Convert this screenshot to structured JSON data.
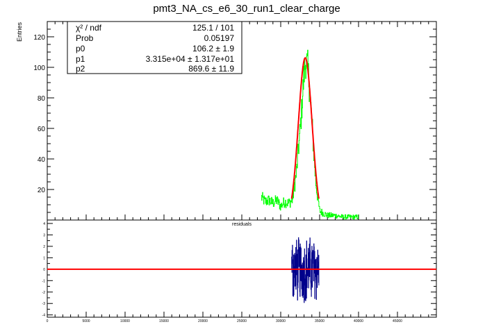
{
  "chart_data": [
    {
      "type": "line",
      "title": "pmt3_NA_cs_e6_30_run1_clear_charge",
      "xlabel": "",
      "ylabel": "Entries",
      "xlim": [
        0,
        50000
      ],
      "ylim": [
        0,
        130
      ],
      "yticks": [
        20,
        40,
        60,
        80,
        100,
        120
      ],
      "grid": false,
      "stats_box": {
        "placement": "top-left",
        "rows": [
          {
            "label": "χ² / ndf",
            "value": "125.1 / 101"
          },
          {
            "label": "Prob",
            "value": "0.05197"
          },
          {
            "label": "p0",
            "value": "106.2 ± 1.9"
          },
          {
            "label": "p1",
            "value": "3.315e+04 ± 1.317e+01"
          },
          {
            "label": "p2",
            "value": "869.6 ± 11.9"
          }
        ]
      },
      "histogram": {
        "color": "#00ff00",
        "range": [
          27500,
          40000
        ],
        "anchors": [
          [
            27500,
            15
          ],
          [
            28000,
            12
          ],
          [
            28500,
            13
          ],
          [
            29000,
            11
          ],
          [
            29500,
            13
          ],
          [
            30000,
            9
          ],
          [
            30500,
            12
          ],
          [
            31000,
            11
          ],
          [
            31500,
            13
          ],
          [
            32000,
            30
          ],
          [
            32500,
            58
          ],
          [
            33000,
            95
          ],
          [
            33200,
            104
          ],
          [
            33500,
            100
          ],
          [
            34000,
            65
          ],
          [
            34500,
            25
          ],
          [
            35000,
            6
          ],
          [
            36000,
            3
          ],
          [
            37000,
            3
          ],
          [
            38000,
            2
          ],
          [
            39000,
            2
          ],
          [
            40000,
            2
          ]
        ]
      },
      "fit": {
        "name": "gaus",
        "color": "#ff0000",
        "amplitude": 106.2,
        "mean": 33150,
        "sigma": 869.6,
        "range": [
          31400,
          34900
        ]
      }
    },
    {
      "type": "line",
      "title": "residuals",
      "xlim": [
        0,
        50000
      ],
      "ylim": [
        -4.2,
        4.3
      ],
      "xticks": [
        0,
        5000,
        10000,
        15000,
        20000,
        25000,
        30000,
        35000,
        40000,
        45000
      ],
      "xtick_labels": [
        "0",
        "5000",
        "10000",
        "15000",
        "20000",
        "25000",
        "30000",
        "35000",
        "40000",
        "45000"
      ],
      "yticks": [
        -4,
        -3,
        -2,
        -1,
        0,
        1,
        2,
        3,
        4
      ],
      "ytick_labels": [
        "-4",
        "-3",
        "-2",
        "-1",
        "0",
        "1",
        "2",
        "3",
        "4"
      ],
      "series": [
        {
          "color": "#00008b",
          "range": [
            31400,
            34900
          ],
          "min": -3.3,
          "max": 4.0
        },
        {
          "color": "#ff0000",
          "value": 0
        }
      ]
    }
  ]
}
